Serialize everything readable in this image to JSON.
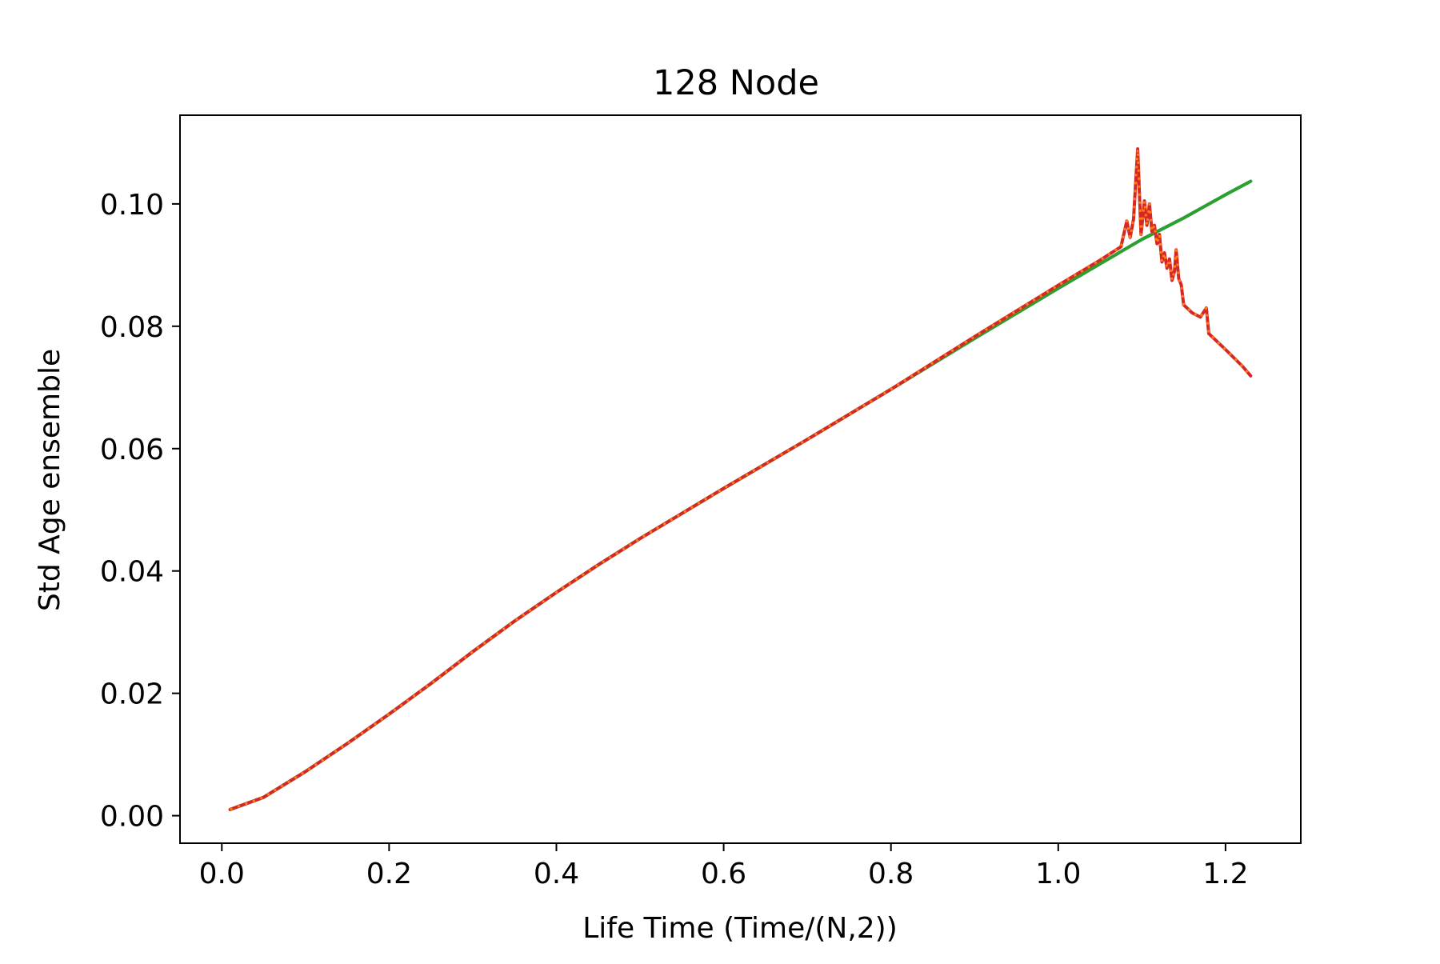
{
  "chart_data": {
    "type": "line",
    "title": "128 Node",
    "xlabel": "Life Time (Time/(N,2))",
    "ylabel": "Std Age ensemble",
    "xlim": [
      -0.05,
      1.29
    ],
    "ylim": [
      -0.0045,
      0.1145
    ],
    "xticks": [
      0.0,
      0.2,
      0.4,
      0.6,
      0.8,
      1.0,
      1.2
    ],
    "xtick_labels": [
      "0.0",
      "0.2",
      "0.4",
      "0.6",
      "0.8",
      "1.0",
      "1.2"
    ],
    "yticks": [
      0.0,
      0.02,
      0.04,
      0.06,
      0.08,
      0.1
    ],
    "ytick_labels": [
      "0.00",
      "0.02",
      "0.04",
      "0.06",
      "0.08",
      "0.10"
    ],
    "grid": false,
    "legend": "none",
    "series": [
      {
        "color": "#1f77b4",
        "style": "solid",
        "points": [
          [
            0.01,
            0.001
          ],
          [
            0.05,
            0.003
          ],
          [
            0.1,
            0.0072
          ],
          [
            0.15,
            0.0118
          ],
          [
            0.2,
            0.0166
          ],
          [
            0.25,
            0.0216
          ],
          [
            0.3,
            0.0268
          ],
          [
            0.35,
            0.0318
          ],
          [
            0.4,
            0.0365
          ],
          [
            0.45,
            0.041
          ],
          [
            0.5,
            0.0453
          ],
          [
            0.6,
            0.0535
          ],
          [
            0.7,
            0.0615
          ],
          [
            0.8,
            0.0697
          ],
          [
            0.9,
            0.078
          ],
          [
            1.0,
            0.0862
          ],
          [
            1.05,
            0.0902
          ],
          [
            1.1,
            0.0942
          ],
          [
            1.15,
            0.0977
          ],
          [
            1.2,
            0.1015
          ],
          [
            1.23,
            0.1037
          ]
        ]
      },
      {
        "color": "#2ca02c",
        "style": "solid",
        "points": [
          [
            0.01,
            0.001
          ],
          [
            0.05,
            0.003
          ],
          [
            0.1,
            0.0072
          ],
          [
            0.15,
            0.0118
          ],
          [
            0.2,
            0.0166
          ],
          [
            0.25,
            0.0216
          ],
          [
            0.3,
            0.0268
          ],
          [
            0.35,
            0.0318
          ],
          [
            0.4,
            0.0365
          ],
          [
            0.45,
            0.041
          ],
          [
            0.5,
            0.0453
          ],
          [
            0.6,
            0.0535
          ],
          [
            0.7,
            0.0615
          ],
          [
            0.8,
            0.0697
          ],
          [
            0.9,
            0.078
          ],
          [
            1.0,
            0.0862
          ],
          [
            1.05,
            0.0902
          ],
          [
            1.1,
            0.0942
          ],
          [
            1.15,
            0.0977
          ],
          [
            1.2,
            0.1015
          ],
          [
            1.23,
            0.1037
          ]
        ]
      },
      {
        "color": "#d62728",
        "style": "solid",
        "points": [
          [
            0.01,
            0.001
          ],
          [
            0.05,
            0.003
          ],
          [
            0.1,
            0.0072
          ],
          [
            0.15,
            0.0118
          ],
          [
            0.2,
            0.0166
          ],
          [
            0.25,
            0.0216
          ],
          [
            0.3,
            0.0268
          ],
          [
            0.35,
            0.0318
          ],
          [
            0.4,
            0.0365
          ],
          [
            0.45,
            0.041
          ],
          [
            0.5,
            0.0453
          ],
          [
            0.6,
            0.0535
          ],
          [
            0.7,
            0.0615
          ],
          [
            0.8,
            0.0697
          ],
          [
            0.9,
            0.0783
          ],
          [
            1.0,
            0.0867
          ],
          [
            1.05,
            0.0908
          ],
          [
            1.075,
            0.093
          ],
          [
            1.082,
            0.0972
          ],
          [
            1.086,
            0.0945
          ],
          [
            1.09,
            0.0975
          ],
          [
            1.095,
            0.109
          ],
          [
            1.099,
            0.095
          ],
          [
            1.103,
            0.1005
          ],
          [
            1.106,
            0.0965
          ],
          [
            1.109,
            0.1
          ],
          [
            1.112,
            0.0955
          ],
          [
            1.115,
            0.0965
          ],
          [
            1.118,
            0.0935
          ],
          [
            1.121,
            0.095
          ],
          [
            1.124,
            0.0905
          ],
          [
            1.127,
            0.092
          ],
          [
            1.13,
            0.0895
          ],
          [
            1.133,
            0.091
          ],
          [
            1.136,
            0.0875
          ],
          [
            1.139,
            0.089
          ],
          [
            1.141,
            0.0925
          ],
          [
            1.144,
            0.0878
          ],
          [
            1.147,
            0.0868
          ],
          [
            1.15,
            0.0835
          ],
          [
            1.16,
            0.0822
          ],
          [
            1.17,
            0.0815
          ],
          [
            1.177,
            0.083
          ],
          [
            1.18,
            0.0788
          ],
          [
            1.2,
            0.0762
          ],
          [
            1.22,
            0.0735
          ],
          [
            1.23,
            0.0719
          ]
        ]
      },
      {
        "color": "#ff7f0e",
        "style": "dotted",
        "points": [
          [
            0.01,
            0.001
          ],
          [
            0.05,
            0.003
          ],
          [
            0.1,
            0.0072
          ],
          [
            0.15,
            0.0118
          ],
          [
            0.2,
            0.0166
          ],
          [
            0.25,
            0.0216
          ],
          [
            0.3,
            0.0268
          ],
          [
            0.35,
            0.0318
          ],
          [
            0.4,
            0.0365
          ],
          [
            0.45,
            0.041
          ],
          [
            0.5,
            0.0453
          ],
          [
            0.6,
            0.0535
          ],
          [
            0.7,
            0.0615
          ],
          [
            0.8,
            0.0697
          ],
          [
            0.9,
            0.0783
          ],
          [
            1.0,
            0.0867
          ],
          [
            1.05,
            0.0908
          ],
          [
            1.075,
            0.093
          ],
          [
            1.082,
            0.0972
          ],
          [
            1.086,
            0.0945
          ],
          [
            1.09,
            0.0975
          ],
          [
            1.095,
            0.109
          ],
          [
            1.099,
            0.095
          ],
          [
            1.103,
            0.1005
          ],
          [
            1.106,
            0.0965
          ],
          [
            1.109,
            0.1
          ],
          [
            1.112,
            0.0955
          ],
          [
            1.115,
            0.0965
          ],
          [
            1.118,
            0.0935
          ],
          [
            1.121,
            0.095
          ],
          [
            1.124,
            0.0905
          ],
          [
            1.127,
            0.092
          ],
          [
            1.13,
            0.0895
          ],
          [
            1.133,
            0.091
          ],
          [
            1.136,
            0.0875
          ],
          [
            1.139,
            0.089
          ],
          [
            1.141,
            0.0925
          ],
          [
            1.144,
            0.0878
          ],
          [
            1.147,
            0.0868
          ],
          [
            1.15,
            0.0835
          ],
          [
            1.16,
            0.0822
          ],
          [
            1.17,
            0.0815
          ],
          [
            1.177,
            0.083
          ],
          [
            1.18,
            0.0788
          ],
          [
            1.2,
            0.0762
          ],
          [
            1.22,
            0.0735
          ],
          [
            1.23,
            0.0719
          ]
        ]
      }
    ]
  }
}
